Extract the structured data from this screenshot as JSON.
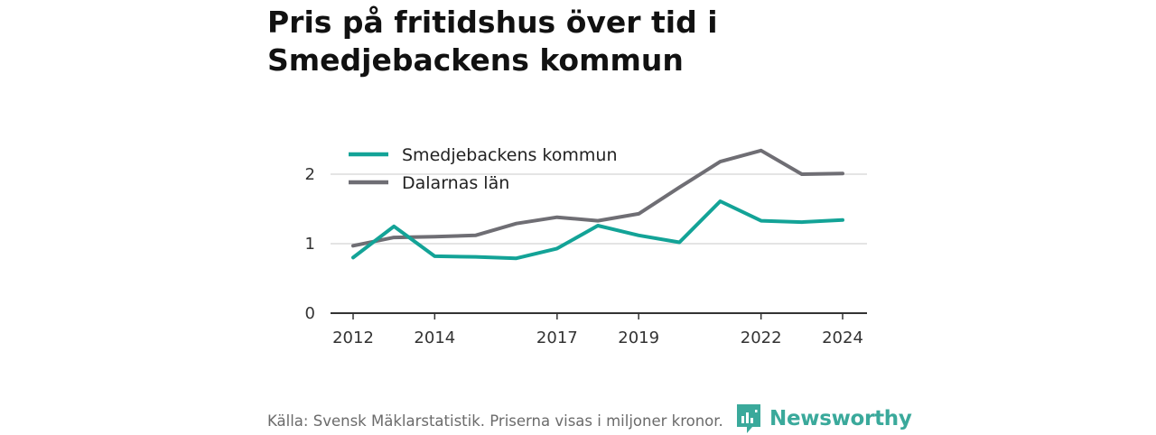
{
  "title": "Pris på fritidshus över tid i Smedjebackens kommun",
  "source": "Källa: Svensk Mäklarstatistik. Priserna visas i miljoner kronor.",
  "brand": {
    "name": "Newsworthy",
    "color": "#3aa99b",
    "icon": "newsworthy-logo-icon"
  },
  "chart_data": {
    "type": "line",
    "x": [
      2012,
      2013,
      2014,
      2015,
      2016,
      2017,
      2018,
      2019,
      2020,
      2021,
      2022,
      2023,
      2024
    ],
    "x_ticks": [
      2012,
      2014,
      2017,
      2019,
      2022,
      2024
    ],
    "y_ticks": [
      0,
      1,
      2
    ],
    "ylim": [
      0,
      2.4
    ],
    "grid": true,
    "legend_position": "top-left",
    "series": [
      {
        "name": "Smedjebackens kommun",
        "color": "#13a397",
        "values": [
          0.8,
          1.25,
          0.82,
          0.81,
          0.79,
          0.93,
          1.26,
          1.12,
          1.02,
          1.61,
          1.33,
          1.31,
          1.34
        ]
      },
      {
        "name": "Dalarnas län",
        "color": "#6f6e74",
        "values": [
          0.97,
          1.09,
          1.1,
          1.12,
          1.29,
          1.38,
          1.33,
          1.43,
          1.81,
          2.18,
          2.34,
          2.0,
          2.01
        ]
      }
    ]
  }
}
